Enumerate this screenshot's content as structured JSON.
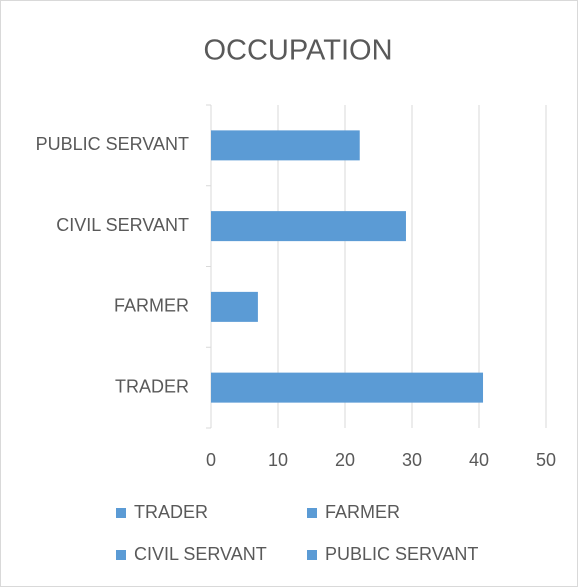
{
  "chart_data": {
    "type": "hbar",
    "title": "OCCUPATION",
    "categories": [
      "TRADER",
      "FARMER",
      "CIVIL SERVANT",
      "PUBLIC SERVANT"
    ],
    "values": [
      40.6,
      7,
      29.1,
      22.2
    ],
    "color": "#5b9bd5",
    "xlim": [
      0,
      50
    ],
    "xticks": [
      0,
      10,
      20,
      30,
      40,
      50
    ],
    "grid": true,
    "legend": "bottom"
  }
}
